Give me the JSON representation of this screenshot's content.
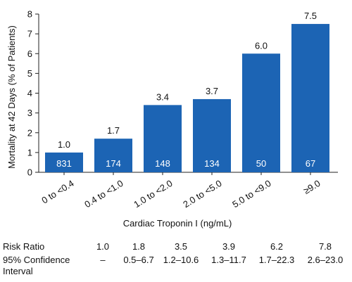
{
  "chart_data": {
    "type": "bar",
    "categories": [
      "0 to <0.4",
      "0.4 to <1.0",
      "1.0 to <2.0",
      "2.0 to <5.0",
      "5.0 to <9.0",
      "≥9.0"
    ],
    "values": [
      1.0,
      1.7,
      3.4,
      3.7,
      6.0,
      7.5
    ],
    "value_labels": [
      "1.0",
      "1.7",
      "3.4",
      "3.7",
      "6.0",
      "7.5"
    ],
    "patient_counts": [
      "831",
      "174",
      "148",
      "134",
      "50",
      "67"
    ],
    "xlabel": "Cardiac Troponin I (ng/mL)",
    "ylabel": "Mortality at 42 Days (% of Patients)",
    "ylim": [
      0,
      8
    ],
    "yticks": [
      "0",
      "1",
      "2",
      "3",
      "4",
      "5",
      "6",
      "7",
      "8"
    ],
    "bar_color": "#1c64b4",
    "grid": false
  },
  "stats_table": {
    "risk_ratio_label": "Risk Ratio",
    "risk_ratios": [
      "1.0",
      "1.8",
      "3.5",
      "3.9",
      "6.2",
      "7.8"
    ],
    "ci_label_line1": "95% Confidence",
    "ci_label_line2": "Interval",
    "confidence_intervals": [
      "–",
      "0.5–6.7",
      "1.2–10.6",
      "1.3–11.7",
      "1.7–22.3",
      "2.6–23.0"
    ]
  }
}
